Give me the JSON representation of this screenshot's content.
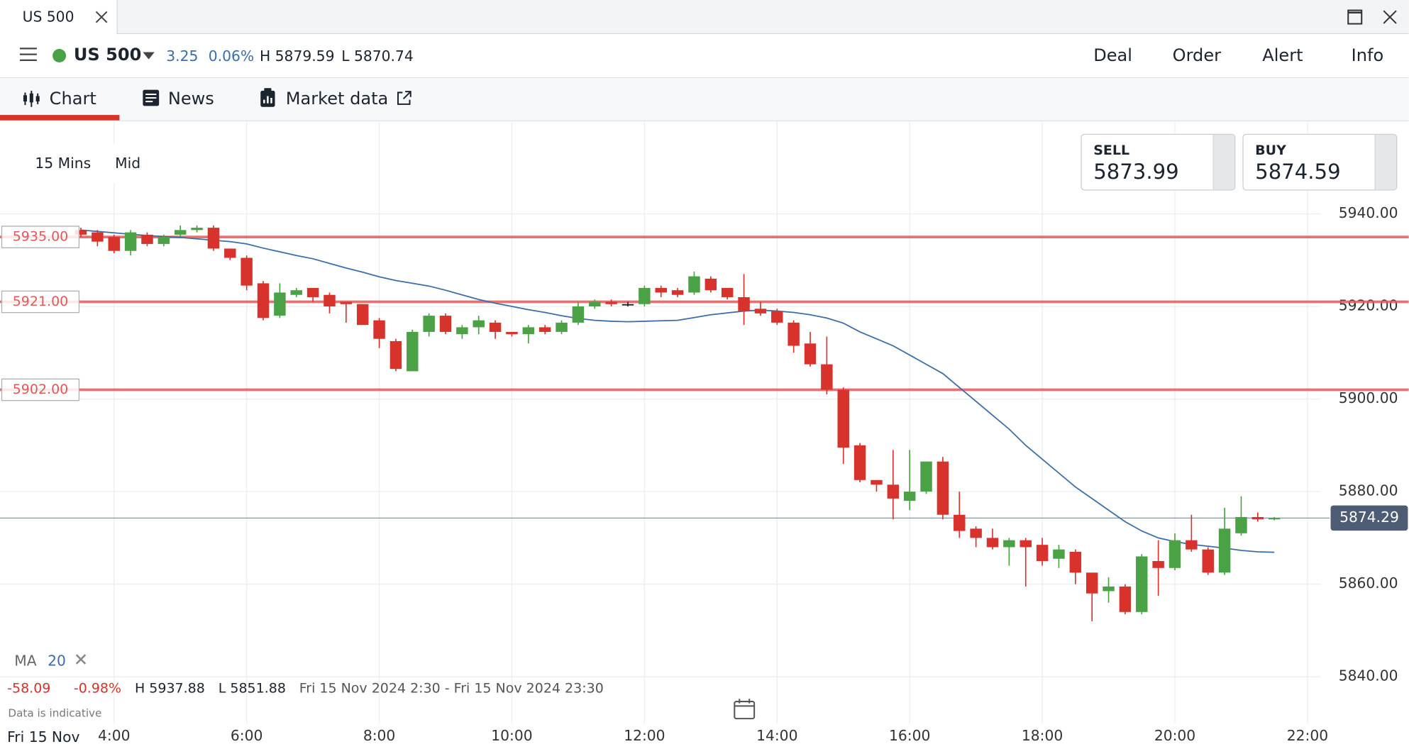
{
  "tab": {
    "title": "US 500"
  },
  "header": {
    "instrument": "US 500",
    "change": "3.25",
    "change_pct": "0.06%",
    "high": "H 5879.59",
    "low": "L 5870.74"
  },
  "menu": [
    "Deal",
    "Order",
    "Alert",
    "Info"
  ],
  "tabs": [
    "Chart",
    "News",
    "Market data"
  ],
  "chart_data": {
    "type": "candlestick",
    "interval": "15 Mins",
    "price_type": "Mid",
    "sell": {
      "label": "SELL",
      "price": "5873.99"
    },
    "buy": {
      "label": "BUY",
      "price": "5874.59"
    },
    "colors": {
      "up": "#4ba146",
      "down": "#d7332c",
      "doji": "#222222",
      "ma": "#3b6ea8",
      "level": "#e05a5a",
      "current": "#4d5b73"
    },
    "x": [
      3.5,
      3.75,
      4,
      4.25,
      4.5,
      4.75,
      5,
      5.25,
      5.5,
      5.75,
      6,
      6.25,
      6.5,
      6.75,
      7,
      7.25,
      7.5,
      7.75,
      8,
      8.25,
      8.5,
      8.75,
      9,
      9.25,
      9.5,
      9.75,
      10,
      10.25,
      10.5,
      10.75,
      11,
      11.25,
      11.5,
      11.75,
      12,
      12.25,
      12.5,
      12.75,
      13,
      13.25,
      13.5,
      13.75,
      14,
      14.25,
      14.5,
      14.75,
      15,
      15.25,
      15.5,
      15.75,
      16,
      16.25,
      16.5,
      16.75,
      17,
      17.25,
      17.5,
      17.75,
      18,
      18.25,
      18.5,
      18.75,
      19,
      19.25,
      19.5,
      19.75,
      20,
      20.25,
      20.5,
      20.75,
      21,
      21.25,
      21.5
    ],
    "open": [
      5936.5,
      5936,
      5935,
      5932,
      5935.5,
      5933.5,
      5935.5,
      5936.5,
      5937,
      5932.5,
      5930.5,
      5925,
      5918,
      5922.5,
      5924,
      5922.5,
      5921,
      5920.5,
      5917,
      5912.5,
      5906,
      5914.5,
      5918,
      5914,
      5915.5,
      5916.5,
      5914.5,
      5914,
      5915.5,
      5914.5,
      5916.5,
      5920,
      5921,
      5920.5,
      5920.5,
      5924,
      5923.5,
      5923,
      5926,
      5924,
      5922,
      5919.5,
      5919,
      5916.5,
      5912,
      5907.5,
      5902,
      5890,
      5882.5,
      5881.5,
      5878,
      5880,
      5886.5,
      5875,
      5872,
      5870,
      5868,
      5869.5,
      5868.5,
      5865.5,
      5867,
      5862.5,
      5858.5,
      5859.5,
      5854,
      5865,
      5863.5,
      5869.5,
      5867.5,
      5862.5,
      5871,
      5874.5,
      5874
    ],
    "high": [
      5937,
      5936.5,
      5935.5,
      5936.5,
      5936,
      5935.5,
      5937.5,
      5937.5,
      5937.5,
      5932.5,
      5931,
      5925.5,
      5925,
      5924,
      5924,
      5923,
      5921,
      5920.5,
      5917.5,
      5913,
      5915,
      5918.5,
      5918.5,
      5916,
      5918,
      5917,
      5914.5,
      5916,
      5916,
      5917,
      5921,
      5921.5,
      5921.5,
      5921,
      5924.5,
      5924.5,
      5924,
      5927.5,
      5926.5,
      5924,
      5927,
      5921,
      5919.5,
      5917,
      5914.5,
      5913.5,
      5902.5,
      5890.5,
      5882.5,
      5889,
      5889,
      5886.5,
      5887.5,
      5880,
      5872.5,
      5872,
      5870,
      5870,
      5870,
      5868.5,
      5867.5,
      5862.5,
      5861.5,
      5860,
      5866.5,
      5869.5,
      5871,
      5875,
      5868,
      5876.5,
      5879,
      5875.5,
      5874.5
    ],
    "low": [
      5935,
      5933,
      5931.5,
      5931,
      5933,
      5933,
      5935,
      5936,
      5932,
      5930,
      5923.5,
      5917,
      5917.5,
      5922,
      5921,
      5918.5,
      5916.5,
      5916,
      5911,
      5906,
      5906,
      5913.5,
      5914,
      5913,
      5914,
      5913,
      5913.5,
      5912,
      5914,
      5914,
      5916,
      5919.5,
      5920,
      5920,
      5920,
      5922,
      5922,
      5922.5,
      5923,
      5921.5,
      5916,
      5918,
      5916,
      5910,
      5907,
      5901,
      5886,
      5882,
      5880,
      5874,
      5876,
      5879.5,
      5874,
      5870,
      5868,
      5867.5,
      5864,
      5859.5,
      5864,
      5863.5,
      5860,
      5852,
      5856,
      5853.5,
      5853.5,
      5857.5,
      5863,
      5867,
      5862,
      5862,
      5870.5,
      5873.5,
      5873.8
    ],
    "close": [
      5935.5,
      5934,
      5932,
      5936,
      5933.5,
      5935,
      5936.5,
      5937,
      5932.5,
      5930.5,
      5924.5,
      5917.5,
      5923,
      5923.5,
      5922,
      5920,
      5920.5,
      5916,
      5913,
      5906.5,
      5914.5,
      5918,
      5914.5,
      5915.5,
      5917,
      5914.5,
      5914,
      5915.5,
      5914.5,
      5916.5,
      5920,
      5921,
      5920.5,
      5920.5,
      5924,
      5923,
      5922.5,
      5926.5,
      5923.5,
      5922,
      5919,
      5918.5,
      5916.5,
      5911.5,
      5907.5,
      5902,
      5889.5,
      5882.5,
      5881.5,
      5878.5,
      5880,
      5886.5,
      5875,
      5871.5,
      5870,
      5868,
      5869.5,
      5868,
      5865,
      5867.5,
      5862.5,
      5858,
      5859.5,
      5854,
      5866,
      5863.5,
      5869.5,
      5867.5,
      5862.5,
      5872,
      5874.5,
      5874,
      5874.3
    ],
    "ma": {
      "name": "MA",
      "period": 20,
      "values": [
        5936.5,
        5936.2,
        5935.9,
        5935.6,
        5935.3,
        5935.1,
        5934.9,
        5934.6,
        5934.3,
        5934,
        5933.5,
        5932.6,
        5931.8,
        5931,
        5930.3,
        5929.3,
        5928.3,
        5927.4,
        5926.4,
        5925.6,
        5925,
        5924.4,
        5923.5,
        5922.5,
        5921.5,
        5920.7,
        5920,
        5919.3,
        5918.7,
        5918,
        5917.4,
        5917,
        5916.8,
        5916.7,
        5916.8,
        5916.9,
        5917,
        5917.6,
        5918.2,
        5918.6,
        5919,
        5919.2,
        5919,
        5918.7,
        5918.2,
        5917.5,
        5916.4,
        5914.5,
        5913,
        5911.5,
        5909.5,
        5907.5,
        5905.5,
        5902.5,
        5899.5,
        5896.5,
        5893.5,
        5890,
        5887,
        5884,
        5881,
        5878.5,
        5876,
        5873.5,
        5871.5,
        5870,
        5869.2,
        5868.6,
        5868.2,
        5867.8,
        5867.3,
        5867,
        5866.9
      ]
    },
    "levels": [
      {
        "value": 5935,
        "label": "5935.00"
      },
      {
        "value": 5921,
        "label": "5921.00"
      },
      {
        "value": 5902,
        "label": "5902.00"
      }
    ],
    "current_price": {
      "value": 5874.29,
      "label": "5874.29"
    },
    "xlim": [
      2.28,
      22.2
    ],
    "xticks": [
      {
        "value": 4,
        "label": "4:00"
      },
      {
        "value": 6,
        "label": "6:00"
      },
      {
        "value": 8,
        "label": "8:00"
      },
      {
        "value": 10,
        "label": "10:00"
      },
      {
        "value": 12,
        "label": "12:00"
      },
      {
        "value": 14,
        "label": "14:00"
      },
      {
        "value": 16,
        "label": "16:00"
      },
      {
        "value": 18,
        "label": "18:00"
      },
      {
        "value": 20,
        "label": "20:00"
      },
      {
        "value": 22,
        "label": "22:00"
      }
    ],
    "ylim": [
      5830,
      5960
    ],
    "yticks": [
      {
        "value": 5840,
        "label": "5840.00"
      },
      {
        "value": 5860,
        "label": "5860.00"
      },
      {
        "value": 5880,
        "label": "5880.00"
      },
      {
        "value": 5900,
        "label": "5900.00"
      },
      {
        "value": 5920,
        "label": "5920.00"
      },
      {
        "value": 5940,
        "label": "5940.00"
      }
    ],
    "grid": true,
    "date_label": "Fri 15 Nov",
    "stats": {
      "change": "-58.09",
      "change_pct": "-0.98%",
      "high": "H 5937.88",
      "low": "L 5851.88",
      "range": "Fri 15 Nov 2024 2:30 - Fri 15 Nov 2024 23:30"
    },
    "note": "Data is indicative"
  }
}
